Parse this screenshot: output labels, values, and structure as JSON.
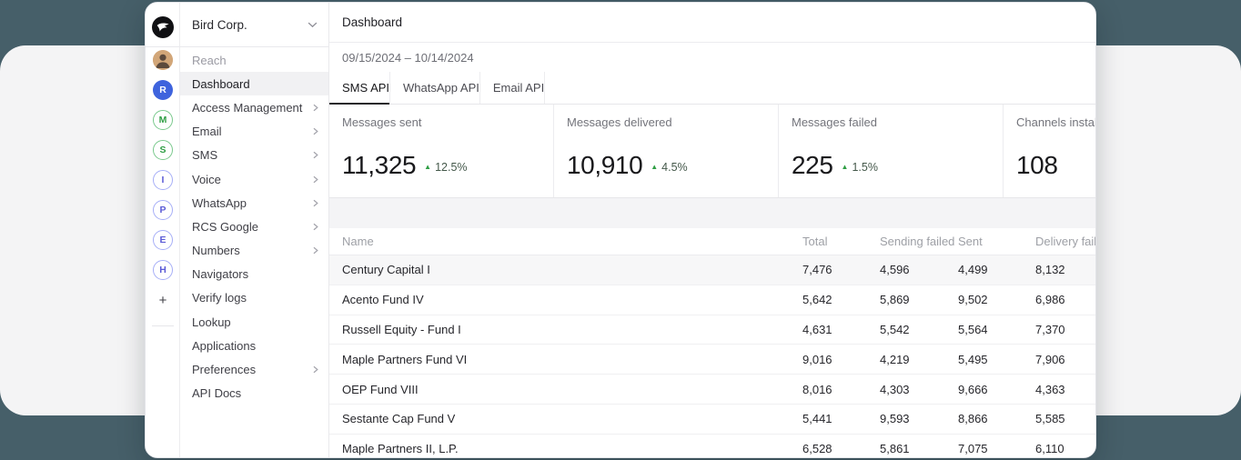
{
  "workspace": {
    "name": "Bird Corp."
  },
  "rail": {
    "logo": "bird-logo-icon",
    "items": [
      {
        "name": "avatar-reach",
        "style": "photo",
        "letter": ""
      },
      {
        "name": "workspace-avatar-r",
        "style": "blue-filled",
        "letter": "R"
      },
      {
        "name": "workspace-avatar-m",
        "style": "green-outline",
        "letter": "M"
      },
      {
        "name": "workspace-avatar-s",
        "style": "green-outline",
        "letter": "S"
      },
      {
        "name": "workspace-avatar-i",
        "style": "indigo-outline",
        "letter": "I"
      },
      {
        "name": "workspace-avatar-p",
        "style": "indigo-outline",
        "letter": "P"
      },
      {
        "name": "workspace-avatar-e",
        "style": "indigo-outline",
        "letter": "E"
      },
      {
        "name": "workspace-avatar-h",
        "style": "indigo-outline",
        "letter": "H"
      }
    ],
    "add_label": "+"
  },
  "sidebar": {
    "items": [
      {
        "label": "Reach",
        "muted": true
      },
      {
        "label": "Dashboard",
        "selected": true
      },
      {
        "label": "Access Management",
        "chevron": true
      },
      {
        "label": "Email",
        "chevron": true
      },
      {
        "label": "SMS",
        "chevron": true
      },
      {
        "label": "Voice",
        "chevron": true
      },
      {
        "label": "WhatsApp",
        "chevron": true
      },
      {
        "label": "RCS Google",
        "chevron": true
      },
      {
        "label": "Numbers",
        "chevron": true
      },
      {
        "label": "Navigators"
      },
      {
        "label": "Verify logs"
      },
      {
        "label": "Lookup"
      },
      {
        "label": "Applications"
      },
      {
        "label": "Preferences",
        "chevron": true
      },
      {
        "label": "API Docs"
      }
    ]
  },
  "header": {
    "title": "Dashboard",
    "date_range": "09/15/2024 – 10/14/2024"
  },
  "tabs": [
    {
      "label": "SMS API",
      "active": true
    },
    {
      "label": "WhatsApp API",
      "active": false
    },
    {
      "label": "Email API",
      "active": false
    }
  ],
  "stats": [
    {
      "label": "Messages sent",
      "value": "11,325",
      "delta": "12.5%",
      "trend": "up"
    },
    {
      "label": "Messages delivered",
      "value": "10,910",
      "delta": "4.5%",
      "trend": "up"
    },
    {
      "label": "Messages failed",
      "value": "225",
      "delta": "1.5%",
      "trend": "up"
    },
    {
      "label": "Channels installed",
      "value": "108",
      "delta": "",
      "trend": ""
    }
  ],
  "table": {
    "columns": [
      "Name",
      "Total",
      "Sending failed",
      "Sent",
      "Delivery failed"
    ],
    "rows": [
      {
        "name": "Century Capital I",
        "total": "7,476",
        "sending_failed": "4,596",
        "sent": "4,499",
        "delivery_failed": "8,132",
        "highlighted": true
      },
      {
        "name": "Acento Fund IV",
        "total": "5,642",
        "sending_failed": "5,869",
        "sent": "9,502",
        "delivery_failed": "6,986"
      },
      {
        "name": "Russell Equity - Fund I",
        "total": "4,631",
        "sending_failed": "5,542",
        "sent": "5,564",
        "delivery_failed": "7,370"
      },
      {
        "name": "Maple Partners Fund VI",
        "total": "9,016",
        "sending_failed": "4,219",
        "sent": "5,495",
        "delivery_failed": "7,906"
      },
      {
        "name": "OEP Fund VIII",
        "total": "8,016",
        "sending_failed": "4,303",
        "sent": "9,666",
        "delivery_failed": "4,363"
      },
      {
        "name": "Sestante Cap Fund V",
        "total": "5,441",
        "sending_failed": "9,593",
        "sent": "8,866",
        "delivery_failed": "5,585"
      },
      {
        "name": "Maple Partners II, L.P.",
        "total": "6,528",
        "sending_failed": "5,861",
        "sent": "7,075",
        "delivery_failed": "6,110"
      }
    ]
  },
  "colors": {
    "backdrop_teal": "#465f69",
    "positive_green": "#2f9e44",
    "avatar_blue": "#3e63dd",
    "avatar_green_outline": "#79c98c",
    "avatar_indigo_outline": "#a6aef7",
    "active_tab_underline": "#26262b"
  }
}
